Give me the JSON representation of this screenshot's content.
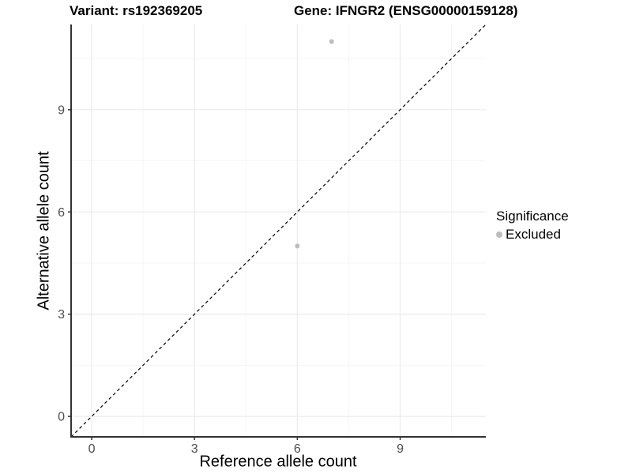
{
  "titles": {
    "variant": "Variant: rs192369205",
    "gene": "Gene: IFNGR2 (ENSG00000159128)"
  },
  "legend": {
    "title": "Significance",
    "items": [
      {
        "label": "Excluded",
        "color": "#bdbdbd"
      }
    ]
  },
  "chart_data": {
    "type": "scatter",
    "xlabel": "Reference allele count",
    "ylabel": "Alternative allele count",
    "xlim": [
      -0.6,
      11.5
    ],
    "ylim": [
      -0.6,
      11.5
    ],
    "xticks": [
      0,
      3,
      6,
      9
    ],
    "yticks": [
      0,
      3,
      6,
      9
    ],
    "minor_ticks": [
      1.5,
      4.5,
      7.5,
      10.5
    ],
    "grid": true,
    "legend_position": "right",
    "series": [
      {
        "name": "Excluded",
        "color": "#bdbdbd",
        "points": [
          {
            "x": 7,
            "y": 11
          },
          {
            "x": 6,
            "y": 5
          }
        ]
      }
    ],
    "identity_line": {
      "slope": 1,
      "intercept": 0,
      "style": "dashed",
      "color": "#000000"
    }
  },
  "style": {
    "background": "#ffffff",
    "axis_line_color": "#333333",
    "tick_label_color": "#4d4d4d",
    "grid_major_color": "#ececec",
    "grid_minor_color": "#f5f5f5",
    "point_color": "#bdbdbd",
    "point_radius": 3
  }
}
